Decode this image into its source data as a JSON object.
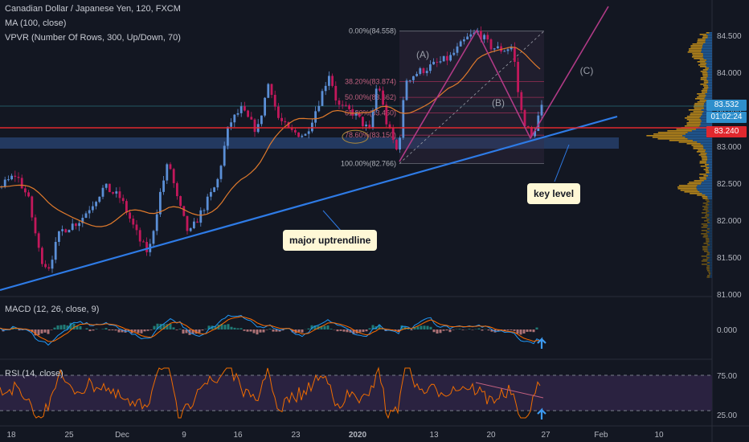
{
  "header": {
    "symbol_line": "Canadian Dollar / Japanese Yen, 120, FXCM",
    "ma_line": "MA (100, close)",
    "vpvr_line": "VPVR (Number Of Rows, 300, Up/Down, 70)"
  },
  "indicators": {
    "macd_label": "MACD (12, 26, close, 9)",
    "rsi_label": "RSI (14, close)"
  },
  "price_axis": {
    "ticks": [
      "84.500",
      "84.000",
      "83.500",
      "83.000",
      "82.500",
      "82.000",
      "81.500",
      "81.000"
    ],
    "current_price": "83.532",
    "countdown": "01:02:24",
    "key_price": "83.240"
  },
  "macd_axis": {
    "ticks": [
      "0.000"
    ]
  },
  "rsi_axis": {
    "ticks": [
      "75.00",
      "25.00"
    ]
  },
  "time_axis": {
    "ticks": [
      "18",
      "25",
      "Dec",
      "9",
      "16",
      "23",
      "2020",
      "13",
      "20",
      "27",
      "Feb",
      "10"
    ]
  },
  "fib_levels": [
    "0.00%(84.558)",
    "38.20%(83.874)",
    "50.00%(83.662)",
    "61.80%(83.450)",
    "78.60%(83.150)",
    "100.00%(82.766)"
  ],
  "wave_labels": [
    "(A)",
    "(B)",
    "(C)"
  ],
  "annotations": {
    "uptrend_label": "major uptrendline",
    "key_level_label": "key level"
  },
  "colors": {
    "background": "#131722",
    "up_candle": "#5b8fd6",
    "down_candle": "#c2185b",
    "ma_line": "#e07a2c",
    "trendline": "#2e7be6",
    "key_level": "#e0282e",
    "fib_line": "#9c2f55",
    "current_price_tag": "#2e8fcc",
    "macd_line": "#2196f3",
    "signal_line": "#ff6d00",
    "rsi_line": "#ef6c00",
    "rsi_band": "#2a2240",
    "vp_gold": "#b8871a",
    "vp_blue": "#215d9a"
  }
}
